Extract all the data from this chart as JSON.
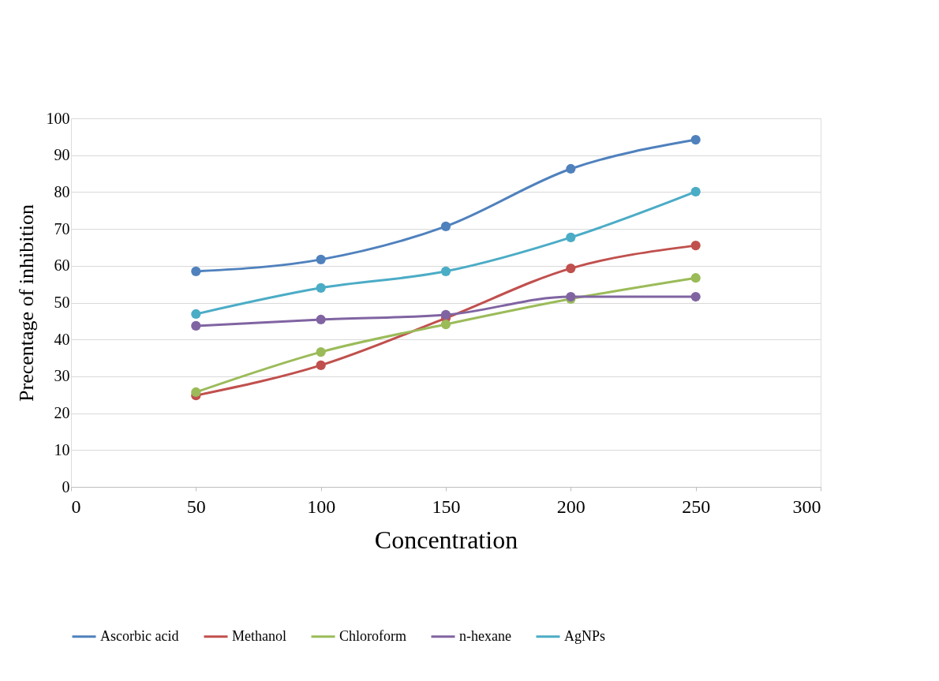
{
  "chart_data": {
    "type": "line",
    "xlabel": "Concentration",
    "ylabel": "Precentage of inhibition",
    "x": [
      50,
      100,
      150,
      200,
      250
    ],
    "xlim": [
      0,
      300
    ],
    "xticks": [
      0,
      50,
      100,
      150,
      200,
      250,
      300
    ],
    "ylim": [
      0,
      100
    ],
    "yticks": [
      0,
      10,
      20,
      30,
      40,
      50,
      60,
      70,
      80,
      90,
      100
    ],
    "grid": "y",
    "legend": "bottom",
    "marker": "circle",
    "line_style": "solid",
    "series": [
      {
        "name": "Ascorbic acid",
        "color": "#4f81bd",
        "values": [
          58.5,
          61.7,
          70.7,
          86.3,
          94.2
        ]
      },
      {
        "name": "Methanol",
        "color": "#c0504d",
        "values": [
          24.8,
          33.0,
          45.8,
          59.3,
          65.5
        ]
      },
      {
        "name": "Chloroform",
        "color": "#9bbb59",
        "values": [
          25.7,
          36.6,
          44.1,
          51.0,
          56.7
        ]
      },
      {
        "name": "n-hexane",
        "color": "#8064a2",
        "values": [
          43.7,
          45.4,
          46.7,
          51.6,
          51.6
        ]
      },
      {
        "name": "AgNPs",
        "color": "#4bacc6",
        "values": [
          46.9,
          54.0,
          58.5,
          67.7,
          80.1
        ]
      }
    ]
  }
}
